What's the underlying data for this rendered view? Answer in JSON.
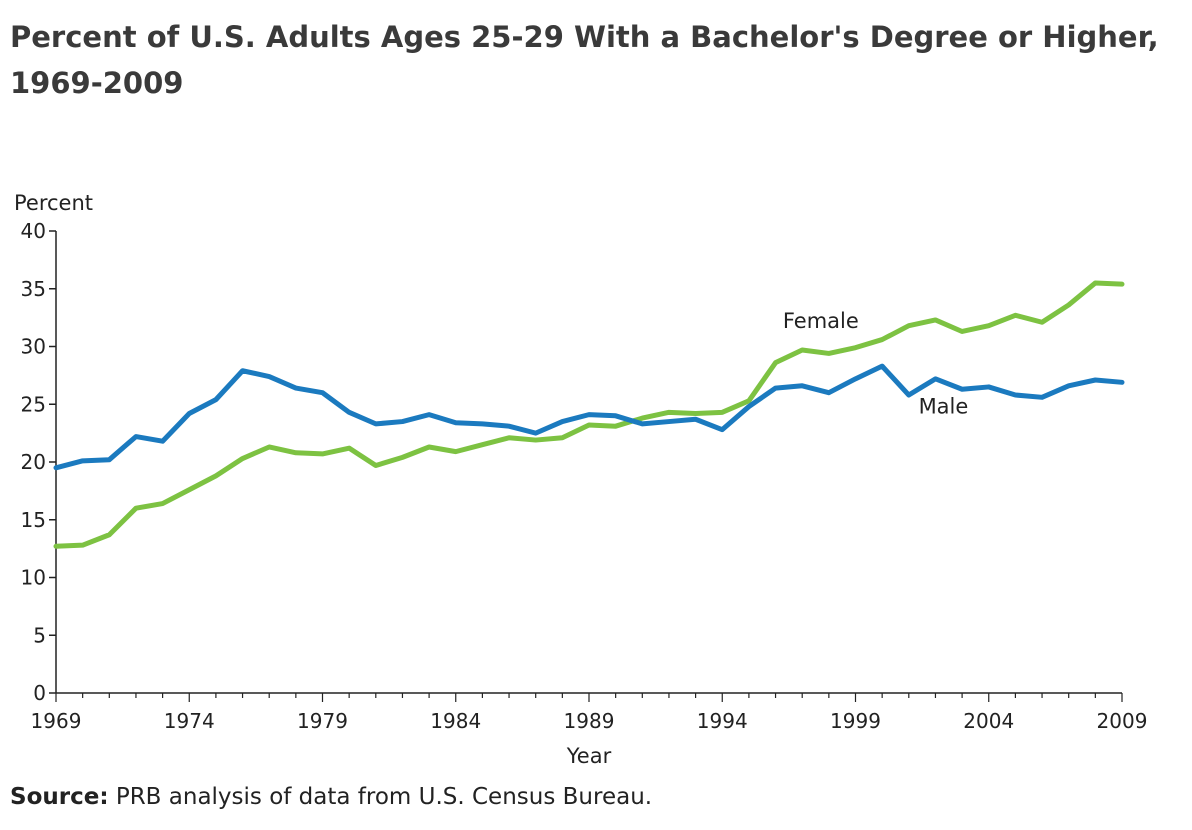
{
  "title": "Percent of U.S. Adults Ages 25-29 With a Bachelor's Degree or Higher, 1969-2009",
  "source": {
    "label": "Source:",
    "text": " PRB analysis of data from U.S. Census Bureau."
  },
  "chart_data": {
    "type": "line",
    "ylabel": "Percent",
    "xlabel": "Year",
    "xlim": [
      1969,
      2009
    ],
    "ylim": [
      0,
      40
    ],
    "xticks": [
      1969,
      1974,
      1979,
      1984,
      1989,
      1994,
      1999,
      2004,
      2009
    ],
    "yticks": [
      0,
      5,
      10,
      15,
      20,
      25,
      30,
      35,
      40
    ],
    "grid": false,
    "x": [
      1969,
      1970,
      1971,
      1972,
      1973,
      1974,
      1975,
      1976,
      1977,
      1978,
      1979,
      1980,
      1981,
      1982,
      1983,
      1984,
      1985,
      1986,
      1987,
      1988,
      1989,
      1990,
      1991,
      1992,
      1993,
      1994,
      1995,
      1996,
      1997,
      1998,
      1999,
      2000,
      2001,
      2002,
      2003,
      2004,
      2005,
      2006,
      2007,
      2008,
      2009
    ],
    "series": [
      {
        "name": "Female",
        "color": "#7dc242",
        "values": [
          12.7,
          12.8,
          13.7,
          16.0,
          16.4,
          17.6,
          18.8,
          20.3,
          21.3,
          20.8,
          20.7,
          21.2,
          19.7,
          20.4,
          21.3,
          20.9,
          21.5,
          22.1,
          21.9,
          22.1,
          23.2,
          23.1,
          23.8,
          24.3,
          24.2,
          24.3,
          25.3,
          28.6,
          29.7,
          29.4,
          29.9,
          30.6,
          31.8,
          32.3,
          31.3,
          31.8,
          32.7,
          32.1,
          33.6,
          35.5,
          35.4
        ]
      },
      {
        "name": "Male",
        "color": "#1b7abf",
        "values": [
          19.5,
          20.1,
          20.2,
          22.2,
          21.8,
          24.2,
          25.4,
          27.9,
          27.4,
          26.4,
          26.0,
          24.3,
          23.3,
          23.5,
          24.1,
          23.4,
          23.3,
          23.1,
          22.5,
          23.5,
          24.1,
          24.0,
          23.3,
          23.5,
          23.7,
          22.8,
          24.8,
          26.4,
          26.6,
          26.0,
          27.2,
          28.3,
          25.8,
          27.2,
          26.3,
          26.5,
          25.8,
          25.6,
          26.6,
          27.1,
          26.9
        ]
      }
    ],
    "annotations": [
      {
        "text": "Female",
        "series": "Female",
        "x": 1997.7,
        "y": 31.6
      },
      {
        "text": "Male",
        "series": "Male",
        "x": 2002.3,
        "y": 24.2
      }
    ]
  }
}
